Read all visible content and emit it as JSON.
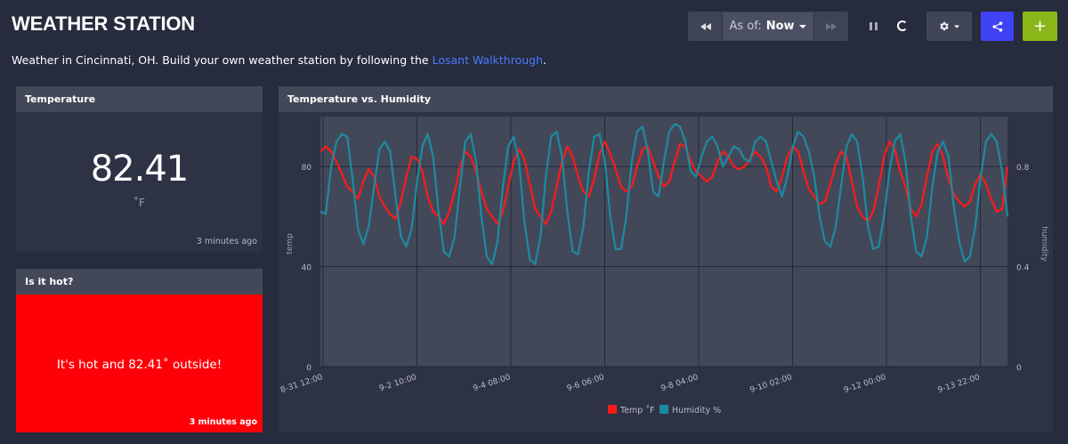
{
  "header": {
    "title": "WEATHER STATION",
    "description_prefix": "Weather in Cincinnati, OH. Build your own weather station by following the ",
    "link_text": "Losant Walkthrough",
    "description_suffix": "."
  },
  "toolbar": {
    "rewind_icon": "rewind-icon",
    "as_of_label": "As of:",
    "as_of_value": "Now",
    "forward_icon": "fast-forward-icon",
    "pause_icon": "pause-icon",
    "settings_icon": "gear-icon",
    "share_icon": "share-icon",
    "add_label": "+",
    "share_color": "#4043f5",
    "add_color": "#8ab617"
  },
  "temperature_block": {
    "title": "Temperature",
    "value": "82.41",
    "unit": "˚F",
    "timestamp": "3 minutes ago"
  },
  "hot_block": {
    "title": "Is it hot?",
    "message": "It's hot and 82.41˚ outside!",
    "timestamp": "3 minutes ago",
    "background": "#ff0008"
  },
  "chart_block": {
    "title": "Temperature vs. Humidity"
  },
  "chart_data": {
    "type": "line",
    "title": "Temperature vs. Humidity",
    "ylabel_left": "temp",
    "ylabel_right": "humidity",
    "ylim_left": [
      0,
      100
    ],
    "ylim_right": [
      0,
      1
    ],
    "yticks_left": [
      "0",
      "40",
      "80"
    ],
    "yticks_right": [
      "0",
      "0.4",
      "0.8"
    ],
    "xticks": [
      "8-31 12:00",
      "9-2 10:00",
      "9-4 08:00",
      "9-6 06:00",
      "9-8 04:00",
      "9-10 02:00",
      "9-12 00:00",
      "9-13 22:00"
    ],
    "x_range": [
      "8-31 12:00",
      "9-14 06:00"
    ],
    "grid": true,
    "legend_position": "bottom",
    "series": [
      {
        "name": "Temp ˚F",
        "axis": "left",
        "color": "#ff1a1a",
        "values": [
          86,
          88,
          86,
          82,
          77,
          72,
          70,
          67,
          74,
          79,
          76,
          68,
          64,
          61,
          59,
          66,
          76,
          84,
          83,
          78,
          68,
          62,
          60,
          57,
          62,
          70,
          80,
          86,
          84,
          78,
          70,
          63,
          60,
          57,
          62,
          72,
          82,
          87,
          83,
          73,
          63,
          60,
          57,
          62,
          72,
          82,
          88,
          84,
          76,
          70,
          68,
          75,
          85,
          90,
          85,
          79,
          72,
          70,
          72,
          80,
          87,
          88,
          82,
          76,
          72,
          74,
          82,
          89,
          88,
          82,
          78,
          76,
          74,
          76,
          82,
          86,
          84,
          80,
          79,
          80,
          83,
          86,
          84,
          80,
          72,
          70,
          76,
          84,
          88,
          86,
          78,
          71,
          68,
          65,
          66,
          73,
          81,
          86,
          84,
          74,
          64,
          60,
          58,
          62,
          72,
          84,
          90,
          87,
          78,
          72,
          63,
          60,
          65,
          76,
          86,
          89,
          84,
          75,
          69,
          66,
          64,
          66,
          73,
          77,
          73,
          67,
          62,
          63,
          80
        ]
      },
      {
        "name": "Humidity %",
        "axis": "right",
        "color": "#1c8ba0",
        "values": [
          0.62,
          0.61,
          0.8,
          0.9,
          0.93,
          0.92,
          0.75,
          0.55,
          0.49,
          0.56,
          0.72,
          0.87,
          0.9,
          0.86,
          0.68,
          0.52,
          0.48,
          0.55,
          0.74,
          0.88,
          0.93,
          0.84,
          0.62,
          0.46,
          0.44,
          0.52,
          0.72,
          0.9,
          0.93,
          0.82,
          0.6,
          0.44,
          0.41,
          0.5,
          0.72,
          0.88,
          0.92,
          0.82,
          0.58,
          0.43,
          0.41,
          0.52,
          0.76,
          0.92,
          0.94,
          0.84,
          0.62,
          0.46,
          0.45,
          0.56,
          0.78,
          0.92,
          0.93,
          0.82,
          0.6,
          0.47,
          0.47,
          0.6,
          0.82,
          0.94,
          0.96,
          0.86,
          0.7,
          0.68,
          0.82,
          0.94,
          0.97,
          0.96,
          0.9,
          0.78,
          0.76,
          0.84,
          0.9,
          0.92,
          0.88,
          0.8,
          0.84,
          0.88,
          0.87,
          0.83,
          0.82,
          0.9,
          0.92,
          0.9,
          0.82,
          0.74,
          0.68,
          0.76,
          0.88,
          0.94,
          0.92,
          0.86,
          0.76,
          0.6,
          0.5,
          0.48,
          0.56,
          0.72,
          0.88,
          0.93,
          0.9,
          0.76,
          0.56,
          0.47,
          0.48,
          0.6,
          0.78,
          0.9,
          0.93,
          0.82,
          0.6,
          0.46,
          0.44,
          0.52,
          0.72,
          0.86,
          0.9,
          0.84,
          0.64,
          0.5,
          0.42,
          0.44,
          0.56,
          0.76,
          0.9,
          0.93,
          0.9,
          0.78,
          0.6
        ]
      }
    ]
  }
}
